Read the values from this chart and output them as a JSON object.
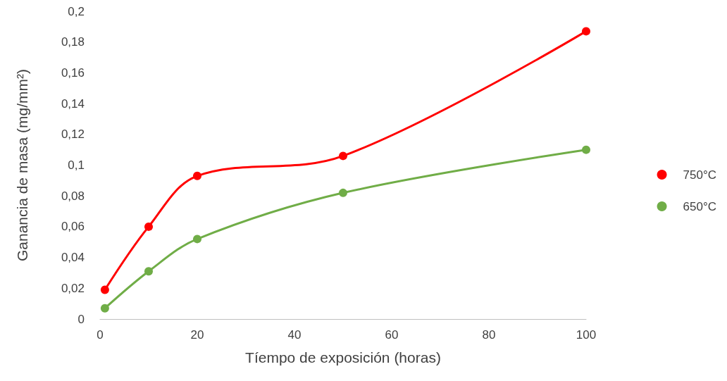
{
  "chart_data": {
    "type": "line",
    "xlabel": "Tíempo de exposición (horas)",
    "ylabel": "Ganancia de masa (mg/mm²)",
    "xlim": [
      0,
      100
    ],
    "xticks": [
      0,
      20,
      40,
      60,
      80,
      100
    ],
    "ylim": [
      0,
      0.2
    ],
    "yticks": [
      {
        "value": 0,
        "label": "0"
      },
      {
        "value": 0.02,
        "label": "0,02"
      },
      {
        "value": 0.04,
        "label": "0,04"
      },
      {
        "value": 0.06,
        "label": "0,06"
      },
      {
        "value": 0.08,
        "label": "0,08"
      },
      {
        "value": 0.1,
        "label": "0,1"
      },
      {
        "value": 0.12,
        "label": "0,12"
      },
      {
        "value": 0.14,
        "label": "0,14"
      },
      {
        "value": 0.16,
        "label": "0,16"
      },
      {
        "value": 0.18,
        "label": "0,18"
      },
      {
        "value": 0.2,
        "label": "0,2"
      }
    ],
    "x": [
      1,
      10,
      20,
      50,
      100
    ],
    "series": [
      {
        "name": "750°C",
        "color": "#ff0000",
        "values": [
          0.019,
          0.06,
          0.093,
          0.106,
          0.187
        ]
      },
      {
        "name": "650°C",
        "color": "#70ad47",
        "values": [
          0.007,
          0.031,
          0.052,
          0.082,
          0.11
        ]
      }
    ],
    "grid": false,
    "legend": "right",
    "marker": "circle",
    "line_style": "solid"
  }
}
